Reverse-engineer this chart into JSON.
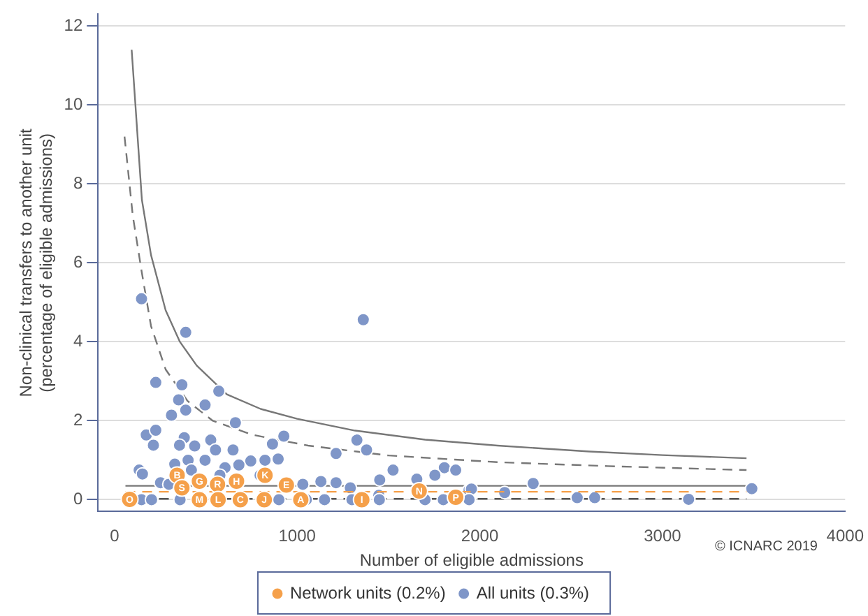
{
  "chart_data": {
    "type": "scatter",
    "xlabel": "Number of eligible admissions",
    "ylabel": "Non-clinical transfers to another unit\n(percentage of eligible admissions)",
    "xlim": [
      -90,
      4000
    ],
    "xticks": [
      0,
      1000,
      2000,
      3000,
      4000
    ],
    "ylim": [
      -0.3,
      12.3
    ],
    "yticks": [
      0,
      2,
      4,
      6,
      8,
      10,
      12
    ],
    "grid": "y",
    "legend": "bottom",
    "annotations": [
      "© ICNARC 2019"
    ],
    "series": [
      {
        "type": "line",
        "color": "#777777",
        "line_style": "solid",
        "x": [
          94,
          150,
          200,
          280,
          358,
          450,
          615,
          800,
          1000,
          1317,
          1700,
          2097,
          2600,
          3000,
          3460
        ],
        "values": [
          11.4,
          7.6,
          6.2,
          4.8,
          4.0,
          3.4,
          2.67,
          2.3,
          2.05,
          1.75,
          1.52,
          1.37,
          1.22,
          1.13,
          1.05
        ]
      },
      {
        "type": "line",
        "color": "#777777",
        "line_style": "dashed",
        "x": [
          55,
          100,
          148,
          200,
          280,
          400,
          538,
          750,
          1060,
          1500,
          2097,
          2700,
          3460
        ],
        "values": [
          9.2,
          7.2,
          5.8,
          4.4,
          3.3,
          2.5,
          2.0,
          1.65,
          1.37,
          1.12,
          0.95,
          0.85,
          0.75
        ]
      },
      {
        "type": "line",
        "color": "#777777",
        "line_style": "solid",
        "x": [
          60,
          3460
        ],
        "values": [
          0.35,
          0.35
        ]
      },
      {
        "type": "line",
        "color": "#555555",
        "line_style": "dashed",
        "x": [
          60,
          3460
        ],
        "values": [
          0.02,
          0.02
        ]
      },
      {
        "name": "All units (0.3%)",
        "type": "scatter",
        "color": "#7f96c8",
        "marker": "circle",
        "x": [
          148,
          1362,
          390,
          226,
          369,
          571,
          351,
          496,
          390,
          312,
          662,
          174,
          226,
          213,
          927,
          1327,
          1380,
          527,
          382,
          356,
          439,
          865,
          649,
          496,
          1213,
          553,
          403,
          330,
          824,
          896,
          746,
          681,
          605,
          135,
          153,
          1525,
          1655,
          1452,
          1806,
          1868,
          1754,
          1213,
          1130,
          1031,
          1941,
          252,
          298,
          421,
          797,
          577,
          1291,
          1447,
          2292,
          2136,
          1954,
          2533,
          2629,
          3143,
          3489,
          148,
          203,
          359,
          900,
          1050,
          1150,
          1300,
          1450,
          1700,
          1800,
          1941
        ],
        "values": [
          5.09,
          4.56,
          4.24,
          2.97,
          2.91,
          2.75,
          2.53,
          2.4,
          2.27,
          2.14,
          1.95,
          1.64,
          1.76,
          1.38,
          1.61,
          1.51,
          1.26,
          1.51,
          1.57,
          1.38,
          1.36,
          1.41,
          1.26,
          1.0,
          1.17,
          1.26,
          1.0,
          0.9,
          1.0,
          1.03,
          0.98,
          0.88,
          0.81,
          0.75,
          0.65,
          0.75,
          0.52,
          0.5,
          0.81,
          0.75,
          0.62,
          0.43,
          0.46,
          0.39,
          0.24,
          0.43,
          0.39,
          0.75,
          0.62,
          0.62,
          0.3,
          0.11,
          0.41,
          0.18,
          0.27,
          0.05,
          0.05,
          0.01,
          0.28,
          0,
          0,
          0,
          0,
          0,
          0,
          0,
          0,
          0,
          0,
          0
        ]
      },
      {
        "type": "line",
        "color": "#f5a04a",
        "line_style": "dashed",
        "x": [
          60,
          3460
        ],
        "values": [
          0.2,
          0.2
        ]
      },
      {
        "name": "Network units (0.2%)",
        "type": "scatter",
        "color": "#f5a04a",
        "marker": "circle",
        "x": [
          343,
          465,
          564,
          668,
          824,
          941,
          369,
          83,
          465,
          567,
          689,
          820,
          1020,
          1354,
          1668,
          1868
        ],
        "values": [
          0.62,
          0.47,
          0.39,
          0.47,
          0.62,
          0.37,
          0.3,
          0.01,
          0,
          0,
          0,
          0,
          0,
          0,
          0.22,
          0.06
        ],
        "value_labels": [
          "B",
          "G",
          "R",
          "H",
          "K",
          "E",
          "S",
          "O",
          "M",
          "L",
          "C",
          "J",
          "A",
          "I",
          "N",
          "P"
        ]
      }
    ]
  }
}
